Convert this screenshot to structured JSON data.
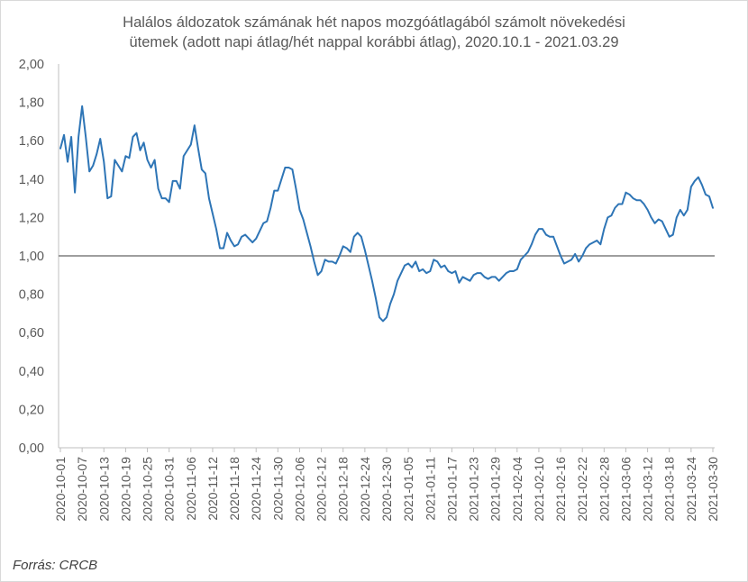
{
  "chart_data": {
    "type": "line",
    "title": "Halálos áldozatok számának hét napos mozgóátlagából számolt növekedési ütemek (adott napi átlag/hét nappal korábbi átlag), 2020.10.1 - 2021.03.29",
    "title_lines": [
      "Halálos áldozatok számának hét napos mozgóátlagából számolt növekedési",
      "ütemek (adott napi átlag/hét nappal korábbi átlag), 2020.10.1 - 2021.03.29"
    ],
    "xlabel": "",
    "ylabel": "",
    "ylim": [
      0,
      2
    ],
    "y_ticks": [
      "0,00",
      "0,20",
      "0,40",
      "0,60",
      "0,80",
      "1,00",
      "1,20",
      "1,40",
      "1,60",
      "1,80",
      "2,00"
    ],
    "x_tick_labels": [
      "2020-10-01",
      "2020-10-07",
      "2020-10-13",
      "2020-10-19",
      "2020-10-25",
      "2020-10-31",
      "2020-11-06",
      "2020-11-12",
      "2020-11-18",
      "2020-11-24",
      "2020-11-30",
      "2020-12-06",
      "2020-12-12",
      "2020-12-18",
      "2020-12-24",
      "2020-12-30",
      "2021-01-05",
      "2021-01-11",
      "2021-01-17",
      "2021-01-23",
      "2021-01-29",
      "2021-02-04",
      "2021-02-10",
      "2021-02-16",
      "2021-02-22",
      "2021-02-28",
      "2021-03-06",
      "2021-03-12",
      "2021-03-18",
      "2021-03-24",
      "2021-03-30"
    ],
    "x_start": "2020-10-01",
    "x_end": "2021-03-29",
    "reference_line": 1.0,
    "grid": false,
    "legend": "none",
    "series": [
      {
        "color": "#2e75b6",
        "values": [
          1.56,
          1.63,
          1.49,
          1.62,
          1.33,
          1.62,
          1.78,
          1.62,
          1.44,
          1.47,
          1.53,
          1.61,
          1.49,
          1.3,
          1.31,
          1.5,
          1.47,
          1.44,
          1.52,
          1.51,
          1.62,
          1.64,
          1.55,
          1.59,
          1.5,
          1.46,
          1.5,
          1.35,
          1.3,
          1.3,
          1.28,
          1.39,
          1.39,
          1.35,
          1.52,
          1.55,
          1.58,
          1.68,
          1.56,
          1.45,
          1.43,
          1.3,
          1.22,
          1.14,
          1.04,
          1.04,
          1.12,
          1.08,
          1.05,
          1.06,
          1.1,
          1.11,
          1.09,
          1.07,
          1.09,
          1.13,
          1.17,
          1.18,
          1.25,
          1.34,
          1.34,
          1.4,
          1.46,
          1.46,
          1.45,
          1.35,
          1.24,
          1.19,
          1.12,
          1.05,
          0.97,
          0.9,
          0.92,
          0.98,
          0.97,
          0.97,
          0.96,
          1.0,
          1.05,
          1.04,
          1.02,
          1.1,
          1.12,
          1.1,
          1.03,
          0.95,
          0.87,
          0.78,
          0.68,
          0.66,
          0.68,
          0.75,
          0.8,
          0.87,
          0.91,
          0.95,
          0.96,
          0.94,
          0.97,
          0.92,
          0.93,
          0.91,
          0.92,
          0.98,
          0.97,
          0.94,
          0.95,
          0.92,
          0.91,
          0.92,
          0.86,
          0.89,
          0.88,
          0.87,
          0.9,
          0.91,
          0.91,
          0.89,
          0.88,
          0.89,
          0.89,
          0.87,
          0.89,
          0.91,
          0.92,
          0.92,
          0.93,
          0.98,
          1.0,
          1.02,
          1.06,
          1.11,
          1.14,
          1.14,
          1.11,
          1.1,
          1.1,
          1.05,
          1.0,
          0.96,
          0.97,
          0.98,
          1.01,
          0.97,
          1.0,
          1.04,
          1.06,
          1.07,
          1.08,
          1.06,
          1.14,
          1.2,
          1.21,
          1.25,
          1.27,
          1.27,
          1.33,
          1.32,
          1.3,
          1.29,
          1.29,
          1.27,
          1.24,
          1.2,
          1.17,
          1.19,
          1.18,
          1.14,
          1.1,
          1.11,
          1.2,
          1.24,
          1.21,
          1.24,
          1.36,
          1.39,
          1.41,
          1.37,
          1.32,
          1.31,
          1.25
        ]
      }
    ]
  },
  "footer": {
    "source": "Forrás: CRCB"
  }
}
